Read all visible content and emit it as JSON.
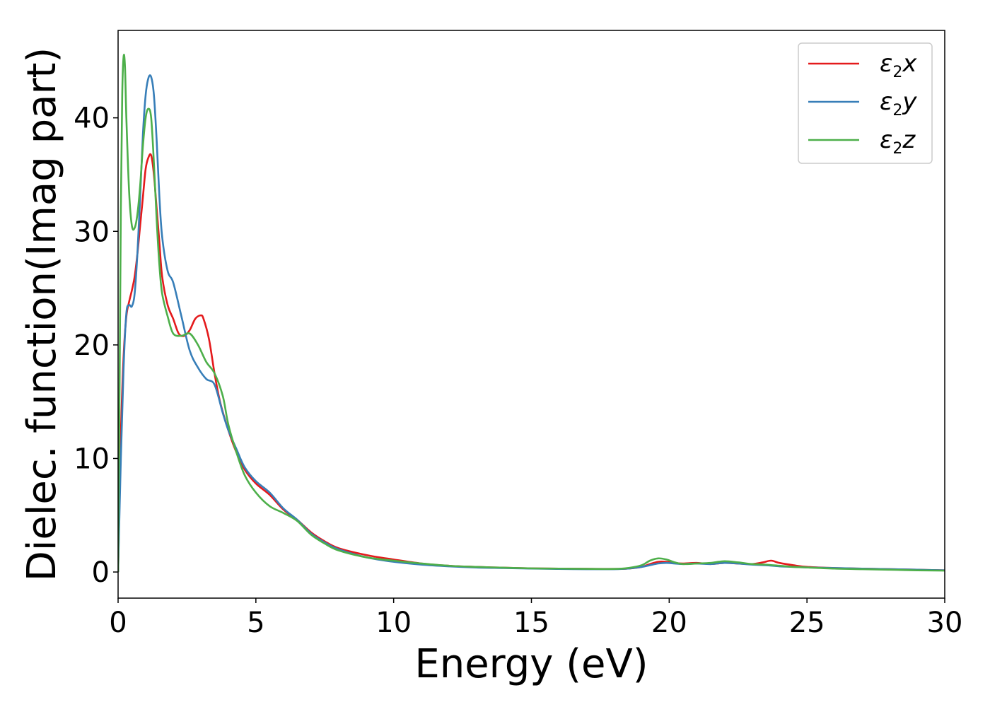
{
  "chart_data": {
    "type": "line",
    "xlabel": "Energy (eV)",
    "ylabel": "Dielec. function(Imag part)",
    "xlim": [
      0,
      30
    ],
    "ylim": [
      -2.3,
      47.7
    ],
    "xticks": [
      0,
      5,
      10,
      15,
      20,
      25,
      30
    ],
    "yticks": [
      0,
      10,
      20,
      30,
      40
    ],
    "grid": false,
    "legend_position": "top-right",
    "series": [
      {
        "name": "ε₂x",
        "legend": {
          "symbol": "ε",
          "sub": "2",
          "var": "x"
        },
        "color": "#e41a1c",
        "x": [
          0,
          0.1,
          0.2,
          0.3,
          0.4,
          0.5,
          0.6,
          0.7,
          0.8,
          0.9,
          1.0,
          1.1,
          1.2,
          1.3,
          1.4,
          1.5,
          1.6,
          1.8,
          2.0,
          2.2,
          2.4,
          2.6,
          2.8,
          3.0,
          3.1,
          3.3,
          3.5,
          3.7,
          4.0,
          4.3,
          4.6,
          5.0,
          5.5,
          6.0,
          6.5,
          7.0,
          7.5,
          8.0,
          9.0,
          10.0,
          11.0,
          12.0,
          13.0,
          14.0,
          15.0,
          16.0,
          17.0,
          18.0,
          18.5,
          19.0,
          19.3,
          19.6,
          19.9,
          20.2,
          20.5,
          21.0,
          21.5,
          22.0,
          22.5,
          23.0,
          23.4,
          23.7,
          24.0,
          24.5,
          25.0,
          26.0,
          27.0,
          28.0,
          29.0,
          30.0
        ],
        "y": [
          0,
          12,
          19,
          22.5,
          23.8,
          24.8,
          26,
          28,
          30.5,
          33,
          35.5,
          36.5,
          36.7,
          35,
          32,
          29,
          26,
          23.5,
          22.3,
          21,
          20.8,
          21.3,
          22.3,
          22.6,
          22.3,
          20.5,
          17.5,
          15,
          12.5,
          10.5,
          9,
          7.8,
          6.8,
          5.5,
          4.6,
          3.5,
          2.7,
          2.1,
          1.5,
          1.1,
          0.75,
          0.55,
          0.45,
          0.38,
          0.32,
          0.3,
          0.28,
          0.27,
          0.3,
          0.45,
          0.7,
          0.9,
          0.9,
          0.8,
          0.75,
          0.8,
          0.7,
          0.8,
          0.75,
          0.7,
          0.85,
          1.0,
          0.8,
          0.6,
          0.45,
          0.35,
          0.3,
          0.25,
          0.2,
          0.15
        ]
      },
      {
        "name": "ε₂y",
        "legend": {
          "symbol": "ε",
          "sub": "2",
          "var": "y"
        },
        "color": "#377eb8",
        "x": [
          0,
          0.1,
          0.2,
          0.3,
          0.4,
          0.5,
          0.6,
          0.7,
          0.8,
          0.9,
          1.0,
          1.1,
          1.2,
          1.3,
          1.4,
          1.5,
          1.6,
          1.8,
          2.0,
          2.3,
          2.6,
          2.9,
          3.2,
          3.5,
          3.8,
          4.0,
          4.3,
          4.6,
          5.0,
          5.5,
          6.0,
          6.5,
          7.0,
          7.5,
          8.0,
          9.0,
          10.0,
          11.0,
          12.0,
          13.0,
          14.0,
          15.0,
          16.0,
          17.0,
          18.0,
          18.5,
          19.0,
          19.3,
          19.6,
          19.9,
          20.2,
          20.5,
          21.0,
          21.5,
          22.0,
          22.5,
          23.0,
          23.5,
          24.0,
          24.5,
          25.0,
          26.0,
          27.0,
          28.0,
          29.0,
          30.0
        ],
        "y": [
          0,
          10,
          18,
          22.8,
          23.5,
          23.4,
          24.5,
          28,
          33,
          38.5,
          42,
          43.5,
          43.6,
          42,
          38,
          33,
          29.5,
          26.5,
          25.5,
          22.5,
          19.5,
          18,
          17,
          16.5,
          14,
          12.5,
          10.8,
          9.2,
          8,
          7,
          5.6,
          4.6,
          3.4,
          2.6,
          2.0,
          1.3,
          0.9,
          0.65,
          0.5,
          0.4,
          0.35,
          0.3,
          0.27,
          0.25,
          0.25,
          0.3,
          0.45,
          0.6,
          0.75,
          0.8,
          0.75,
          0.7,
          0.75,
          0.7,
          0.8,
          0.75,
          0.65,
          0.6,
          0.5,
          0.45,
          0.4,
          0.35,
          0.3,
          0.25,
          0.2,
          0.15
        ]
      },
      {
        "name": "ε₂z",
        "legend": {
          "symbol": "ε",
          "sub": "2",
          "var": "z"
        },
        "color": "#4daf4a",
        "x": [
          0,
          0.05,
          0.1,
          0.15,
          0.2,
          0.25,
          0.3,
          0.4,
          0.5,
          0.6,
          0.7,
          0.8,
          0.9,
          1.0,
          1.1,
          1.2,
          1.3,
          1.4,
          1.5,
          1.6,
          1.8,
          2.0,
          2.3,
          2.6,
          2.9,
          3.2,
          3.5,
          3.8,
          4.0,
          4.3,
          4.6,
          5.0,
          5.5,
          6.0,
          6.5,
          7.0,
          7.5,
          8.0,
          9.0,
          10.0,
          11.0,
          12.0,
          13.0,
          14.0,
          15.0,
          16.0,
          17.0,
          18.0,
          18.5,
          19.0,
          19.3,
          19.6,
          19.9,
          20.2,
          20.5,
          21.0,
          21.5,
          22.0,
          22.5,
          23.0,
          23.5,
          24.0,
          24.5,
          25.0,
          26.0,
          27.0,
          28.0,
          29.0,
          30.0
        ],
        "y": [
          0,
          15,
          32,
          42,
          45.4,
          44.5,
          40,
          33.5,
          30.5,
          30.3,
          31.5,
          34,
          37.5,
          40,
          40.8,
          40,
          36,
          31,
          27,
          24.5,
          22.5,
          21,
          20.8,
          21,
          20,
          18.5,
          17.5,
          15.5,
          13,
          10.5,
          8.5,
          7,
          5.8,
          5.2,
          4.5,
          3.3,
          2.5,
          1.9,
          1.3,
          1.0,
          0.75,
          0.55,
          0.45,
          0.38,
          0.32,
          0.3,
          0.28,
          0.27,
          0.35,
          0.6,
          1.0,
          1.2,
          1.1,
          0.85,
          0.7,
          0.75,
          0.8,
          0.95,
          0.85,
          0.7,
          0.65,
          0.55,
          0.45,
          0.4,
          0.3,
          0.25,
          0.2,
          0.15,
          0.12
        ]
      }
    ]
  }
}
